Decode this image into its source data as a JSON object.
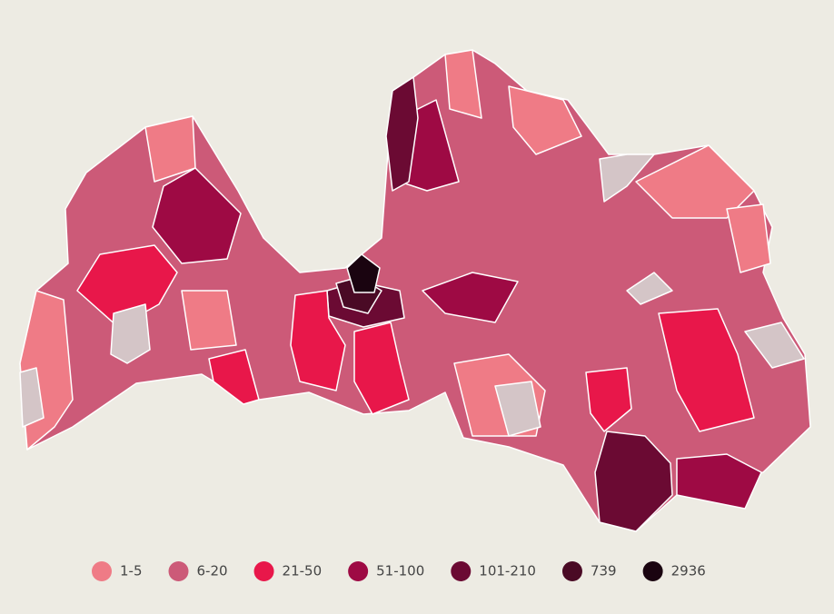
{
  "legend": {
    "items": [
      {
        "label": "1-5",
        "color": "#ef7b86"
      },
      {
        "label": "6-20",
        "color": "#cc5a78"
      },
      {
        "label": "21-50",
        "color": "#e8174a"
      },
      {
        "label": "51-100",
        "color": "#9e0a44"
      },
      {
        "label": "101-210",
        "color": "#6b0a33"
      },
      {
        "label": "739",
        "color": "#4a0a25"
      },
      {
        "label": "2936",
        "color": "#1a0410"
      }
    ]
  }
}
